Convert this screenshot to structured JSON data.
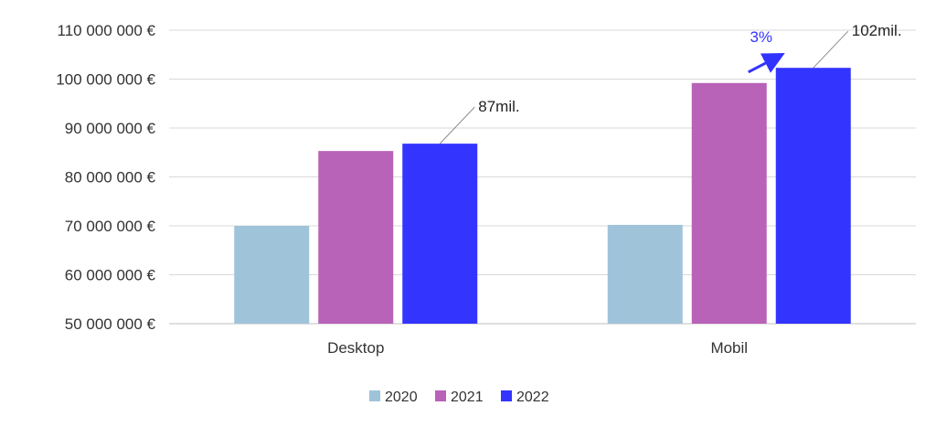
{
  "chart_data": {
    "type": "bar",
    "title": "",
    "xlabel": "",
    "ylabel": "",
    "categories": [
      "Desktop",
      "Mobil"
    ],
    "series": [
      {
        "name": "2020",
        "color": "#9fc3d9",
        "values": [
          70000000,
          70200000
        ]
      },
      {
        "name": "2021",
        "color": "#b862b8",
        "values": [
          85300000,
          99200000
        ]
      },
      {
        "name": "2022",
        "color": "#3434ff",
        "values": [
          86800000,
          102300000
        ]
      }
    ],
    "ylim": [
      50000000,
      110000000
    ],
    "yticks": [
      {
        "value": 50000000,
        "label": "50 000 000 €"
      },
      {
        "value": 60000000,
        "label": "60 000 000 €"
      },
      {
        "value": 70000000,
        "label": "70 000 000 €"
      },
      {
        "value": 80000000,
        "label": "80 000 000 €"
      },
      {
        "value": 90000000,
        "label": "90 000 000 €"
      },
      {
        "value": 100000000,
        "label": "100 000 000 €"
      },
      {
        "value": 110000000,
        "label": "110 000 000 €"
      }
    ],
    "grid": true,
    "legend_position": "bottom-center",
    "annotations": [
      {
        "category": "Desktop",
        "series": "2022",
        "text": "87mil."
      },
      {
        "category": "Mobil",
        "series": "2022",
        "text": "102mil."
      }
    ],
    "growth_annotation": {
      "category": "Mobil",
      "text": "3%",
      "color": "#3333ff"
    }
  }
}
